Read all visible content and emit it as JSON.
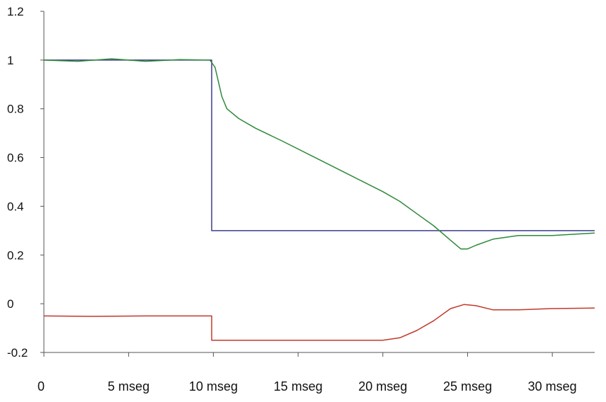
{
  "chart_data": {
    "type": "line",
    "title": "",
    "xlabel": "",
    "ylabel": "",
    "xlim": [
      0,
      32.5
    ],
    "ylim": [
      -0.2,
      1.2
    ],
    "yticks": [
      1.2,
      1,
      0.8,
      0.6,
      0.4,
      0.2,
      0,
      -0.2
    ],
    "ytick_labels": [
      "1.2",
      "1",
      "0.8",
      "0.6",
      "0.4",
      "0.2",
      "0",
      "-0.2"
    ],
    "xticks": [
      0,
      5,
      10,
      15,
      20,
      25,
      30
    ],
    "xtick_labels": [
      "0",
      "5 mseg",
      "10 mseg",
      "15 mseg",
      "20 mseg",
      "25 mseg",
      "30 mseg"
    ],
    "grid": false,
    "legend": "none",
    "series": [
      {
        "color": "#3a3f8f",
        "x": [
          0,
          9.9,
          9.9,
          10.1,
          32.5
        ],
        "y": [
          1.0,
          1.0,
          0.3,
          0.3,
          0.3
        ]
      },
      {
        "color": "#2f8a3a",
        "x": [
          0,
          2,
          4,
          6,
          8,
          9.8,
          10.1,
          10.5,
          10.8,
          11.5,
          12.5,
          14,
          16,
          18,
          20,
          21,
          22,
          23,
          24,
          24.6,
          25,
          25.5,
          26.5,
          28,
          30,
          32.5
        ],
        "y": [
          1.0,
          0.995,
          1.005,
          0.995,
          1.002,
          1.0,
          0.97,
          0.85,
          0.8,
          0.76,
          0.72,
          0.67,
          0.6,
          0.53,
          0.46,
          0.42,
          0.37,
          0.32,
          0.26,
          0.225,
          0.225,
          0.24,
          0.265,
          0.28,
          0.28,
          0.29
        ]
      },
      {
        "color": "#c0392b",
        "x": [
          0,
          3,
          6,
          9.9,
          9.9,
          10.1,
          15,
          20,
          21,
          22,
          23,
          24,
          24.8,
          25.5,
          26.5,
          28,
          30,
          32.5
        ],
        "y": [
          -0.05,
          -0.052,
          -0.05,
          -0.05,
          -0.15,
          -0.15,
          -0.15,
          -0.15,
          -0.14,
          -0.11,
          -0.07,
          -0.02,
          -0.003,
          -0.008,
          -0.025,
          -0.025,
          -0.02,
          -0.018
        ]
      }
    ]
  }
}
